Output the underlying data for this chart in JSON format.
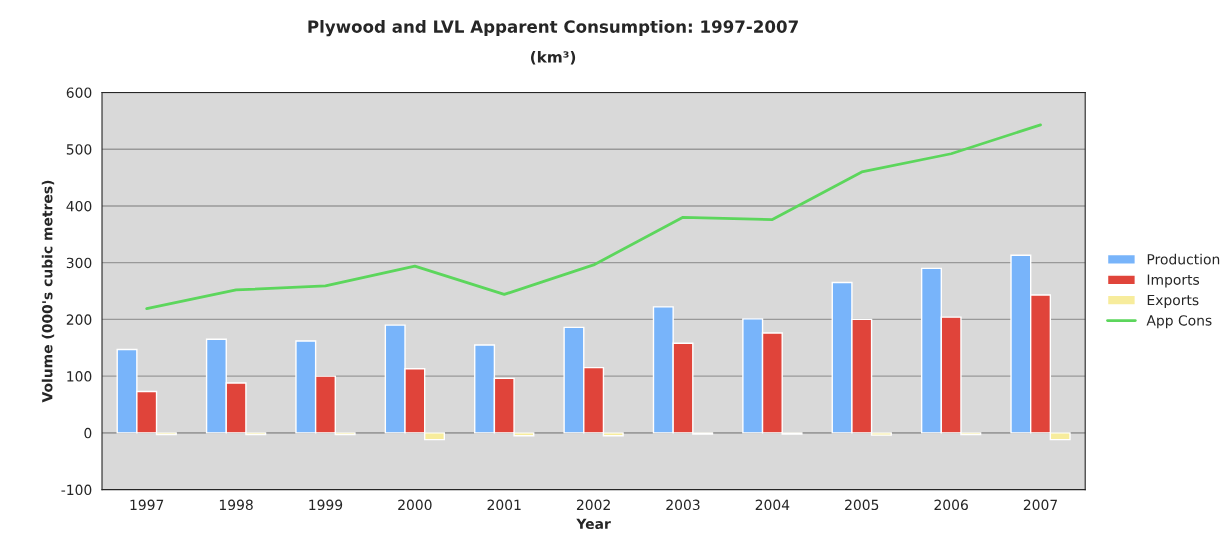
{
  "chart_data": {
    "type": "bar",
    "title": "Plywood and LVL Apparent Consumption: 1997-2007",
    "subtitle": "(km³)",
    "xlabel": "Year",
    "ylabel": "Volume (000's cubic metres)",
    "categories": [
      "1997",
      "1998",
      "1999",
      "2000",
      "2001",
      "2002",
      "2003",
      "2004",
      "2005",
      "2006",
      "2007"
    ],
    "series": [
      {
        "name": "Production",
        "color": "#78b4fa",
        "values": [
          147,
          165,
          162,
          190,
          155,
          186,
          222,
          201,
          265,
          290,
          313
        ]
      },
      {
        "name": "Imports",
        "color": "#e0443a",
        "values": [
          73,
          88,
          100,
          113,
          96,
          115,
          158,
          176,
          200,
          204,
          243
        ]
      },
      {
        "name": "Exports",
        "color": "#f7ec9c",
        "values": [
          -3,
          -3,
          -3,
          -12,
          -5,
          -5,
          -2,
          -2,
          -4,
          -3,
          -12
        ]
      },
      {
        "name": "App Cons",
        "type": "line",
        "color": "#5cd65c",
        "values": [
          219,
          252,
          259,
          294,
          244,
          296,
          380,
          376,
          460,
          492,
          543
        ]
      }
    ],
    "ylim": [
      -100,
      600
    ],
    "yticks": [
      -100,
      0,
      100,
      200,
      300,
      400,
      500,
      600
    ],
    "grid": "y",
    "legend": "right"
  }
}
